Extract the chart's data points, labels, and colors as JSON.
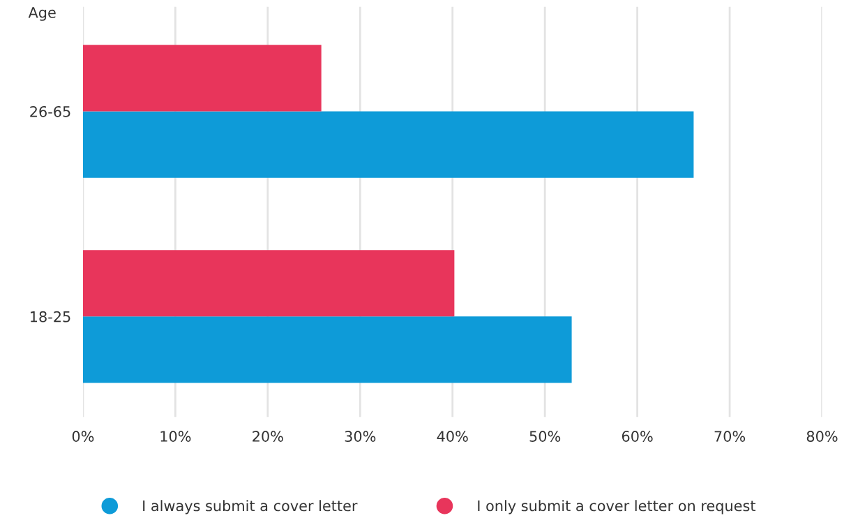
{
  "chart_data": {
    "type": "bar",
    "orientation": "horizontal",
    "ylabel": "Age",
    "categories": [
      "26-65",
      "18-25"
    ],
    "series": [
      {
        "name": "I always submit a cover letter",
        "color": "#0e9bd8",
        "values": [
          66.1,
          52.9
        ]
      },
      {
        "name": "I only submit a cover letter on request",
        "color": "#e8355b",
        "values": [
          25.8,
          40.2
        ]
      }
    ],
    "xlim": [
      0,
      80
    ],
    "xticks": [
      {
        "value": 0,
        "label": "0%"
      },
      {
        "value": 10,
        "label": "10%"
      },
      {
        "value": 20,
        "label": "20%"
      },
      {
        "value": 30,
        "label": "30%"
      },
      {
        "value": 40,
        "label": "40%"
      },
      {
        "value": 50,
        "label": "50%"
      },
      {
        "value": 60,
        "label": "60%"
      },
      {
        "value": 70,
        "label": "70%"
      },
      {
        "value": 80,
        "label": "80%"
      }
    ],
    "grid": "x",
    "legend": "bottom"
  }
}
